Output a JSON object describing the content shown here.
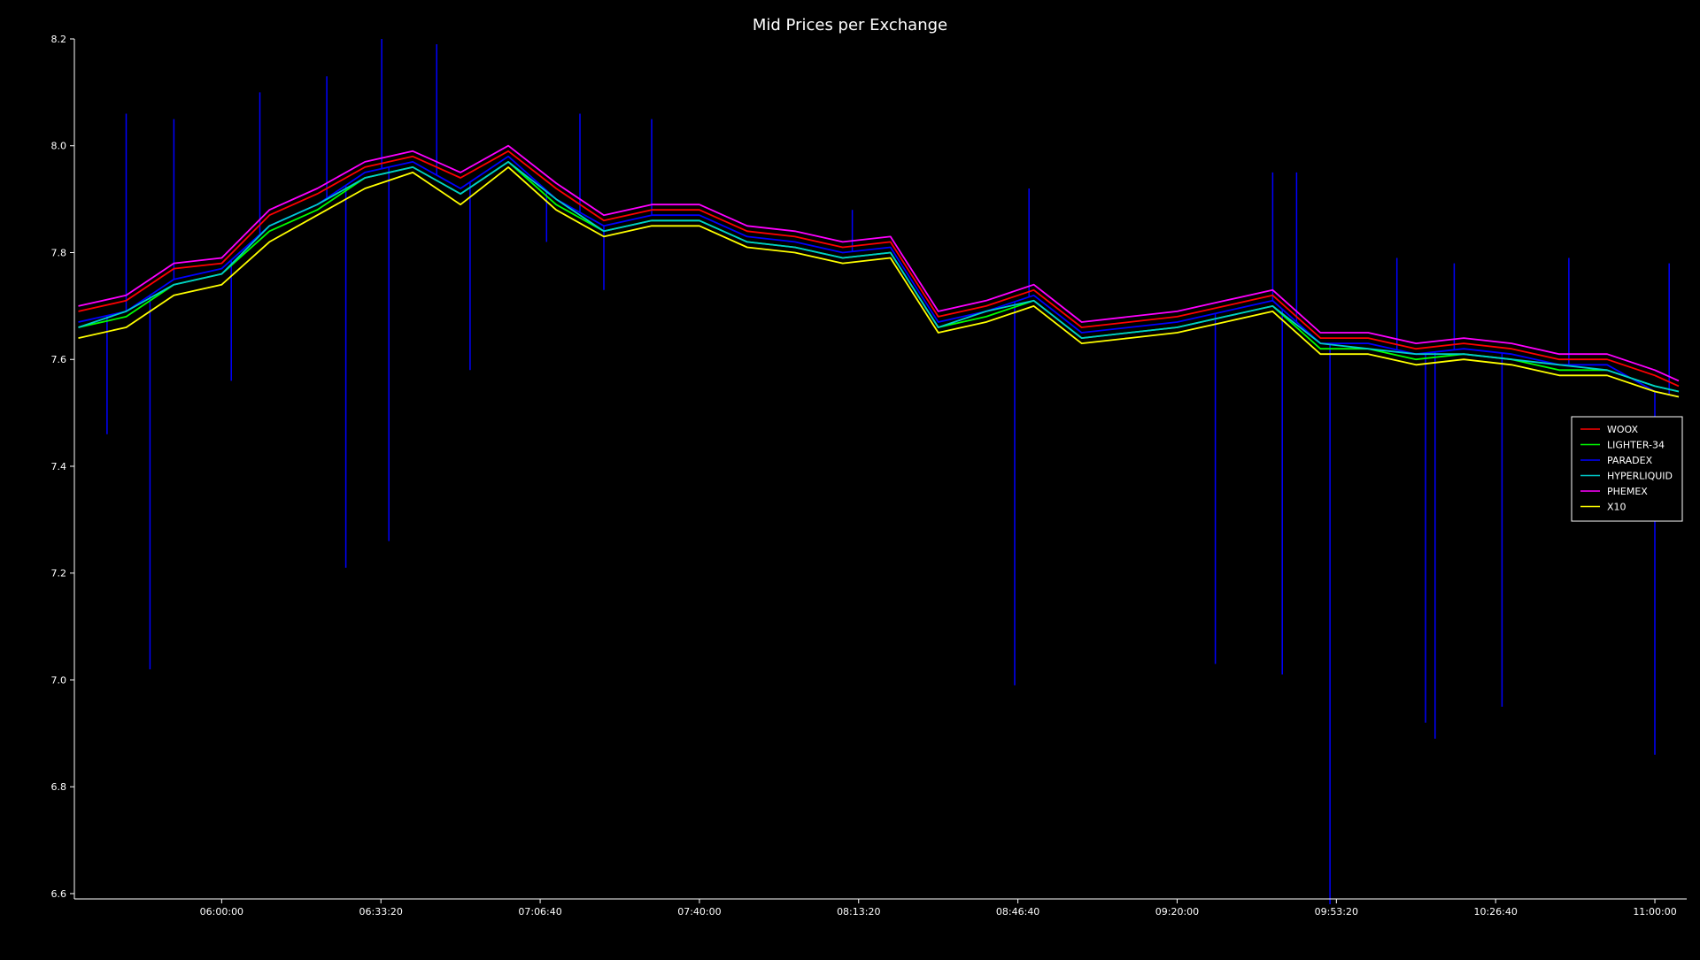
{
  "chart_data": {
    "type": "line",
    "title": "Mid Prices per Exchange",
    "xlabel": "",
    "ylabel": "",
    "x_ticks": [
      "06:00:00",
      "06:33:20",
      "07:06:40",
      "07:40:00",
      "08:13:20",
      "08:46:40",
      "09:20:00",
      "09:53:20",
      "10:26:40",
      "11:00:00"
    ],
    "y_ticks": [
      "6.6",
      "6.8",
      "7.0",
      "7.2",
      "7.4",
      "7.6",
      "7.8",
      "8.0",
      "8.2"
    ],
    "xlim": [
      "05:29:10",
      "11:06:40"
    ],
    "ylim": [
      6.59,
      8.2
    ],
    "grid": false,
    "legend_position": "right",
    "background": "#000000",
    "x": [
      "05:30:00",
      "05:40:00",
      "05:50:00",
      "06:00:00",
      "06:10:00",
      "06:20:00",
      "06:30:00",
      "06:40:00",
      "06:50:00",
      "07:00:00",
      "07:10:00",
      "07:20:00",
      "07:30:00",
      "07:40:00",
      "07:50:00",
      "08:00:00",
      "08:10:00",
      "08:20:00",
      "08:30:00",
      "08:40:00",
      "08:50:00",
      "09:00:00",
      "09:10:00",
      "09:20:00",
      "09:30:00",
      "09:40:00",
      "09:50:00",
      "10:00:00",
      "10:10:00",
      "10:20:00",
      "10:30:00",
      "10:40:00",
      "10:50:00",
      "11:00:00",
      "11:05:00"
    ],
    "series": [
      {
        "name": "WOOX",
        "color": "#ff0000",
        "values": [
          7.69,
          7.71,
          7.77,
          7.78,
          7.87,
          7.91,
          7.96,
          7.98,
          7.94,
          7.99,
          7.92,
          7.86,
          7.88,
          7.88,
          7.84,
          7.83,
          7.81,
          7.82,
          7.68,
          7.7,
          7.73,
          7.66,
          7.67,
          7.68,
          7.7,
          7.72,
          7.64,
          7.64,
          7.62,
          7.63,
          7.62,
          7.6,
          7.6,
          7.57,
          7.55
        ]
      },
      {
        "name": "LIGHTER-34",
        "color": "#00ff00",
        "values": [
          7.66,
          7.68,
          7.74,
          7.76,
          7.84,
          7.88,
          7.94,
          7.96,
          7.91,
          7.97,
          7.89,
          7.84,
          7.86,
          7.86,
          7.82,
          7.81,
          7.79,
          7.8,
          7.66,
          7.68,
          7.71,
          7.64,
          7.65,
          7.66,
          7.68,
          7.7,
          7.62,
          7.62,
          7.6,
          7.61,
          7.6,
          7.58,
          7.58,
          7.55,
          7.54
        ]
      },
      {
        "name": "PARADEX",
        "color": "#0000ff",
        "values": [
          7.67,
          7.69,
          7.75,
          7.77,
          7.85,
          7.89,
          7.95,
          7.97,
          7.92,
          7.98,
          7.9,
          7.85,
          7.87,
          7.87,
          7.83,
          7.82,
          7.8,
          7.81,
          7.67,
          7.69,
          7.72,
          7.65,
          7.66,
          7.67,
          7.69,
          7.71,
          7.63,
          7.63,
          7.61,
          7.62,
          7.61,
          7.59,
          7.59,
          7.54,
          7.53
        ]
      },
      {
        "name": "HYPERLIQUID",
        "color": "#00cccc",
        "values": [
          7.66,
          7.69,
          7.74,
          7.76,
          7.85,
          7.89,
          7.94,
          7.96,
          7.91,
          7.97,
          7.9,
          7.84,
          7.86,
          7.86,
          7.82,
          7.81,
          7.79,
          7.8,
          7.66,
          7.69,
          7.71,
          7.64,
          7.65,
          7.66,
          7.68,
          7.7,
          7.63,
          7.62,
          7.61,
          7.61,
          7.6,
          7.59,
          7.58,
          7.55,
          7.54
        ]
      },
      {
        "name": "PHEMEX",
        "color": "#ff00ff",
        "values": [
          7.7,
          7.72,
          7.78,
          7.79,
          7.88,
          7.92,
          7.97,
          7.99,
          7.95,
          8.0,
          7.93,
          7.87,
          7.89,
          7.89,
          7.85,
          7.84,
          7.82,
          7.83,
          7.69,
          7.71,
          7.74,
          7.67,
          7.68,
          7.69,
          7.71,
          7.73,
          7.65,
          7.65,
          7.63,
          7.64,
          7.63,
          7.61,
          7.61,
          7.58,
          7.56
        ]
      },
      {
        "name": "X10",
        "color": "#ffff00",
        "values": [
          7.64,
          7.66,
          7.72,
          7.74,
          7.82,
          7.87,
          7.92,
          7.95,
          7.89,
          7.96,
          7.88,
          7.83,
          7.85,
          7.85,
          7.81,
          7.8,
          7.78,
          7.79,
          7.65,
          7.67,
          7.7,
          7.63,
          7.64,
          7.65,
          7.67,
          7.69,
          7.61,
          7.61,
          7.59,
          7.6,
          7.59,
          7.57,
          7.57,
          7.54,
          7.53
        ]
      }
    ],
    "spikes": {
      "series": "PARADEX",
      "color": "#0000ff",
      "x": [
        "05:36:00",
        "05:40:00",
        "05:45:00",
        "05:50:00",
        "06:02:00",
        "06:08:00",
        "06:22:00",
        "06:26:00",
        "06:33:30",
        "06:35:00",
        "06:45:00",
        "06:52:00",
        "07:08:00",
        "07:15:00",
        "07:20:00",
        "07:30:00",
        "08:12:00",
        "08:46:00",
        "08:49:00",
        "09:28:00",
        "09:40:00",
        "09:42:00",
        "09:45:00",
        "09:52:00",
        "10:06:00",
        "10:12:00",
        "10:14:00",
        "10:18:00",
        "10:28:00",
        "10:42:00",
        "11:00:00",
        "11:03:00"
      ],
      "tips": [
        7.46,
        8.06,
        7.02,
        8.05,
        7.56,
        8.1,
        8.13,
        7.21,
        8.2,
        7.26,
        8.19,
        7.58,
        7.82,
        8.06,
        7.73,
        8.05,
        7.88,
        6.99,
        7.92,
        7.03,
        7.95,
        7.01,
        7.95,
        6.58,
        7.79,
        6.92,
        6.89,
        7.78,
        6.95,
        7.79,
        6.86,
        7.78
      ]
    }
  }
}
